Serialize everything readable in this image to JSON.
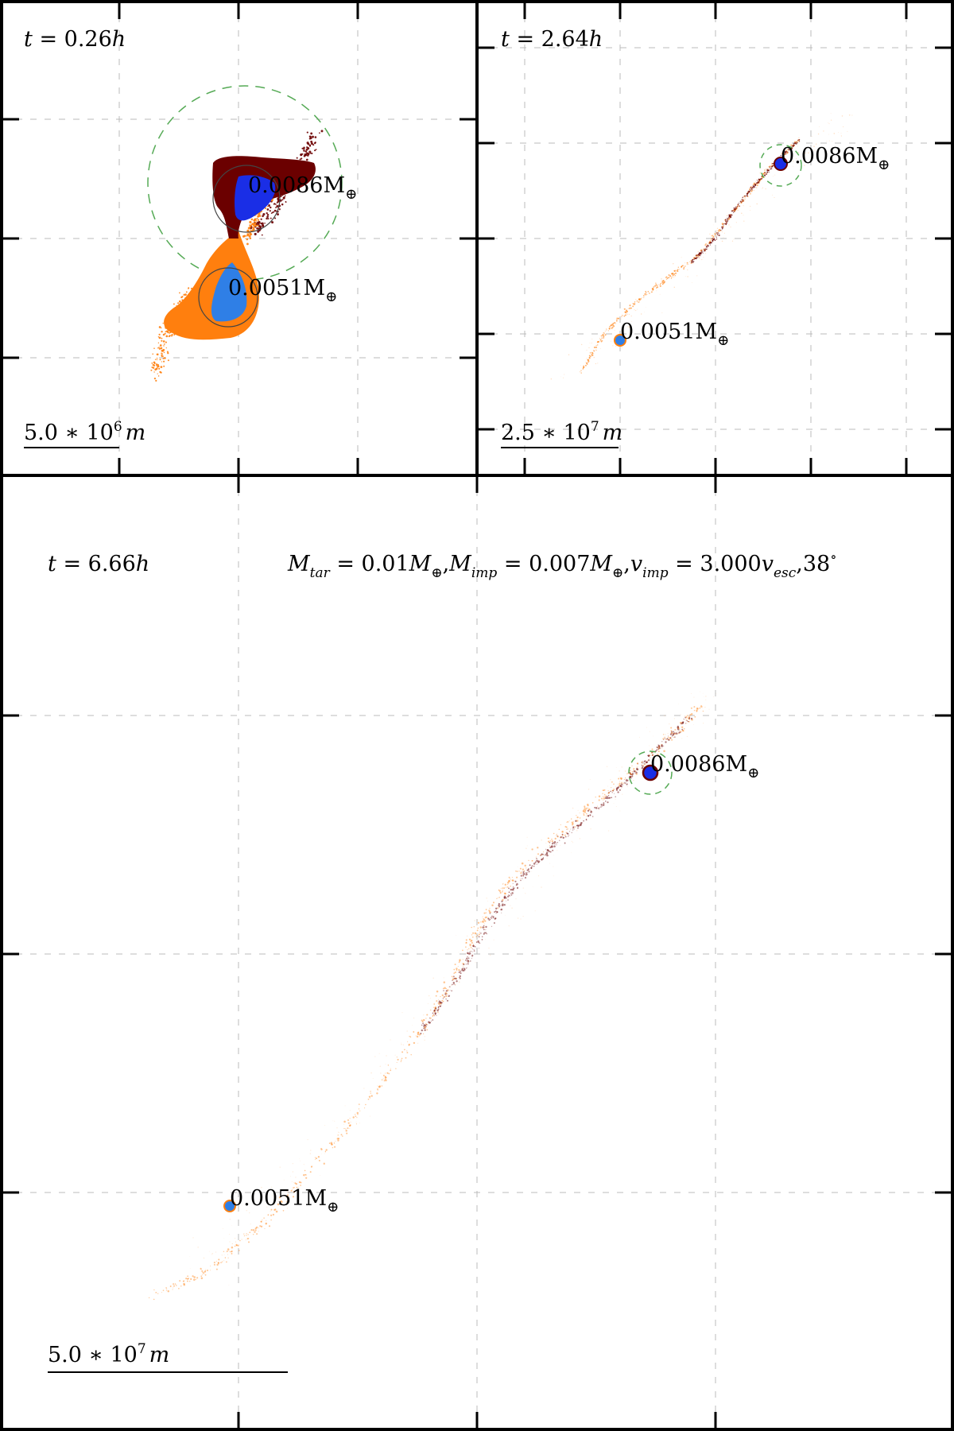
{
  "panels": {
    "p1": {
      "time": "0.26",
      "time_unit": "h",
      "scale_value": "5.0",
      "scale_exp": "6",
      "scale_unit": "m",
      "bodies": [
        {
          "mass": "0.0086",
          "unit": "M",
          "symbol": "⊕"
        },
        {
          "mass": "0.0051",
          "unit": "M",
          "symbol": "⊕"
        }
      ]
    },
    "p2": {
      "time": "2.64",
      "time_unit": "h",
      "scale_value": "2.5",
      "scale_exp": "7",
      "scale_unit": "m",
      "bodies": [
        {
          "mass": "0.0086",
          "unit": "M",
          "symbol": "⊕"
        },
        {
          "mass": "0.0051",
          "unit": "M",
          "symbol": "⊕"
        }
      ]
    },
    "p3": {
      "time": "6.66",
      "time_unit": "h",
      "scale_value": "5.0",
      "scale_exp": "7",
      "scale_unit": "m",
      "bodies": [
        {
          "mass": "0.0086",
          "unit": "M",
          "symbol": "⊕"
        },
        {
          "mass": "0.0051",
          "unit": "M",
          "symbol": "⊕"
        }
      ],
      "params": {
        "m_tar": "0.01",
        "m_imp": "0.007",
        "v_imp": "3.000",
        "angle": "38"
      }
    }
  },
  "colors": {
    "target_mantle": "#6b0000",
    "target_core": "#1a2ee6",
    "impactor_mantle": "#ff7f0e",
    "impactor_core": "#2f7fe6",
    "hill_sphere": "#55aa55",
    "grid": "#bbbbbb"
  }
}
